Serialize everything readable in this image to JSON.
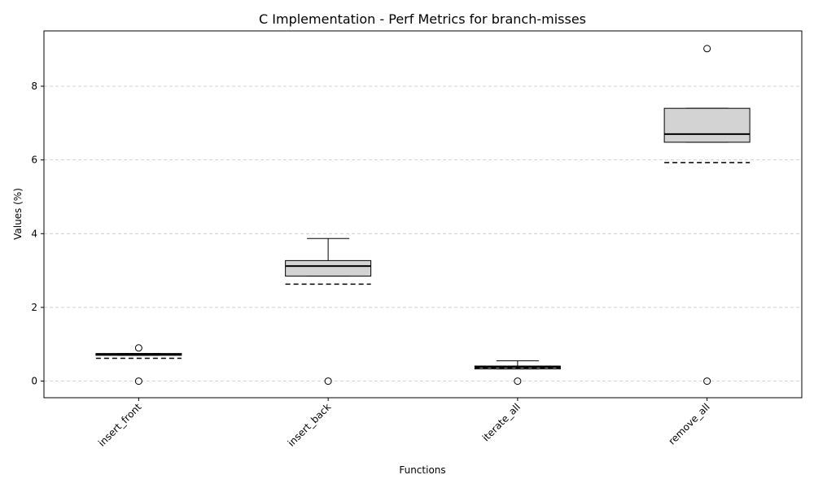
{
  "chart_data": {
    "type": "box",
    "title": "C Implementation - Perf Metrics for branch-misses",
    "xlabel": "Functions",
    "ylabel": "Values (%)",
    "categories": [
      "insert_front",
      "insert_back",
      "iterate_all",
      "remove_all"
    ],
    "ylim": [
      -0.45,
      9.5
    ],
    "yticks": [
      0,
      2,
      4,
      6,
      8
    ],
    "grid": "y-dashed",
    "box_fill": "#d3d3d3",
    "boxes": [
      {
        "category": "insert_front",
        "whisker_low": 0.7,
        "q1": 0.7,
        "median": 0.72,
        "q3": 0.75,
        "whisker_high": 0.75,
        "mean": 0.62,
        "outliers": [
          0.9,
          0.0
        ]
      },
      {
        "category": "insert_back",
        "whisker_low": 2.85,
        "q1": 2.85,
        "median": 3.12,
        "q3": 3.27,
        "whisker_high": 3.87,
        "mean": 2.63,
        "outliers": [
          0.0
        ]
      },
      {
        "category": "iterate_all",
        "whisker_low": 0.33,
        "q1": 0.33,
        "median": 0.38,
        "q3": 0.41,
        "whisker_high": 0.55,
        "mean": 0.36,
        "outliers": [
          0.0
        ]
      },
      {
        "category": "remove_all",
        "whisker_low": 6.48,
        "q1": 6.48,
        "median": 6.7,
        "q3": 7.4,
        "whisker_high": 7.4,
        "mean": 5.93,
        "outliers": [
          9.02,
          0.0
        ]
      }
    ]
  }
}
